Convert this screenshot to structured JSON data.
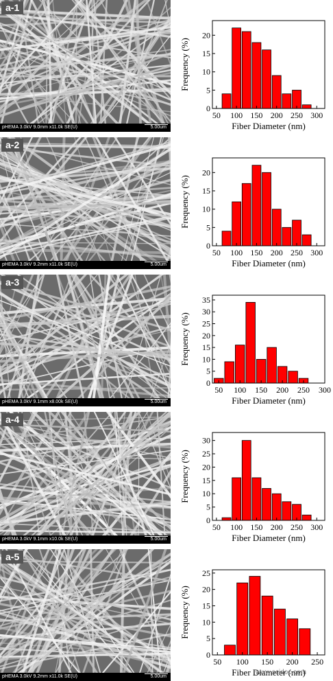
{
  "panels": [
    {
      "label": "a-1",
      "sem_info": "pHEMA 3.0kV 9.0mm x11.0k SE(U)",
      "scale_bar": "5.00um",
      "chart_data": {
        "type": "bar",
        "x": [
          75,
          100,
          125,
          150,
          175,
          200,
          225,
          250,
          275,
          300
        ],
        "values": [
          4,
          22,
          21,
          18,
          16,
          9,
          4,
          5,
          1,
          0
        ],
        "xticks": [
          50,
          100,
          150,
          200,
          250,
          300
        ],
        "yticks": [
          0,
          5,
          10,
          15,
          20
        ],
        "xlim": [
          40,
          320
        ],
        "ylim": [
          0,
          24
        ],
        "xlabel": "Fiber Diameter (nm)",
        "ylabel": "Frequency (%)"
      }
    },
    {
      "label": "a-2",
      "sem_info": "pHEMA 3.0kV 9.2mm x11.0k SE(U)",
      "scale_bar": "5.00um",
      "chart_data": {
        "type": "bar",
        "x": [
          75,
          100,
          125,
          150,
          175,
          200,
          225,
          250,
          275,
          300
        ],
        "values": [
          4,
          12,
          17,
          22,
          20,
          10,
          5,
          7,
          3,
          0
        ],
        "xticks": [
          50,
          100,
          150,
          200,
          250,
          300
        ],
        "yticks": [
          0,
          5,
          10,
          15,
          20
        ],
        "xlim": [
          40,
          320
        ],
        "ylim": [
          0,
          24
        ],
        "xlabel": "Fiber Diameter (nm)",
        "ylabel": "Frequency (%)"
      }
    },
    {
      "label": "a-3",
      "sem_info": "pHEMA 3.0kV 9.1mm x8.00k SE(U)",
      "scale_bar": "5.00um",
      "chart_data": {
        "type": "bar",
        "x": [
          50,
          75,
          100,
          125,
          150,
          175,
          200,
          225,
          250,
          275
        ],
        "values": [
          2,
          9,
          16,
          34,
          10,
          15,
          7,
          5,
          2,
          0
        ],
        "xticks": [
          50,
          100,
          150,
          200,
          250,
          300
        ],
        "yticks": [
          0,
          5,
          10,
          15,
          20,
          25,
          30,
          35
        ],
        "xlim": [
          35,
          300
        ],
        "ylim": [
          0,
          37
        ],
        "xlabel": "Fiber Diameter (nm)",
        "ylabel": "Frequency (%)"
      }
    },
    {
      "label": "a-4",
      "sem_info": "pHEMA 3.0kV 9.1mm x10.0k SE(U)",
      "scale_bar": "5.00um",
      "chart_data": {
        "type": "bar",
        "x": [
          75,
          100,
          125,
          150,
          175,
          200,
          225,
          250,
          275,
          300
        ],
        "values": [
          1,
          16,
          30,
          16,
          12,
          10,
          7,
          6,
          2,
          0
        ],
        "xticks": [
          50,
          100,
          150,
          200,
          250,
          300
        ],
        "yticks": [
          0,
          5,
          10,
          15,
          20,
          25,
          30
        ],
        "xlim": [
          40,
          320
        ],
        "ylim": [
          0,
          33
        ],
        "xlabel": "Fiber Diameter (nm)",
        "ylabel": "Frequency (%)"
      }
    },
    {
      "label": "a-5",
      "sem_info": "pHEMA 3.0kV 9.2mm x11.0k SE(U)",
      "scale_bar": "5.00um",
      "chart_data": {
        "type": "bar",
        "x": [
          75,
          100,
          125,
          150,
          175,
          200,
          225,
          250
        ],
        "values": [
          3,
          22,
          24,
          18,
          14,
          11,
          8,
          0
        ],
        "xticks": [
          50,
          100,
          150,
          200,
          250
        ],
        "yticks": [
          0,
          5,
          10,
          15,
          20,
          25
        ],
        "xlim": [
          40,
          265
        ],
        "ylim": [
          0,
          26
        ],
        "xlabel": "Fiber Diameter (nm)",
        "ylabel": "Frequency (%)"
      }
    }
  ],
  "style": {
    "bar_color": "#ff0000",
    "bar_edge": "#000000"
  },
  "watermark": "www.scidoc.com"
}
